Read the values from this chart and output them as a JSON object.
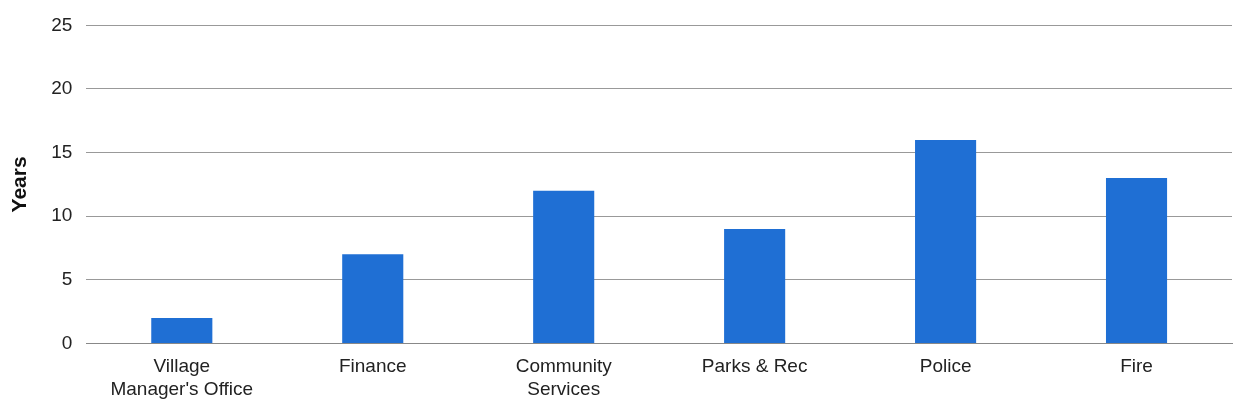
{
  "chart_data": {
    "type": "bar",
    "ylabel": "Years",
    "categories": [
      "Village Manager's Office",
      "Finance",
      "Community Services",
      "Parks & Rec",
      "Police",
      "Fire"
    ],
    "values": [
      2,
      7,
      12,
      9,
      16,
      13
    ],
    "color": "#1f6fd4",
    "ylim": [
      0,
      25
    ],
    "yticks": [
      0,
      5,
      10,
      15,
      20,
      25
    ],
    "grid": "y"
  }
}
